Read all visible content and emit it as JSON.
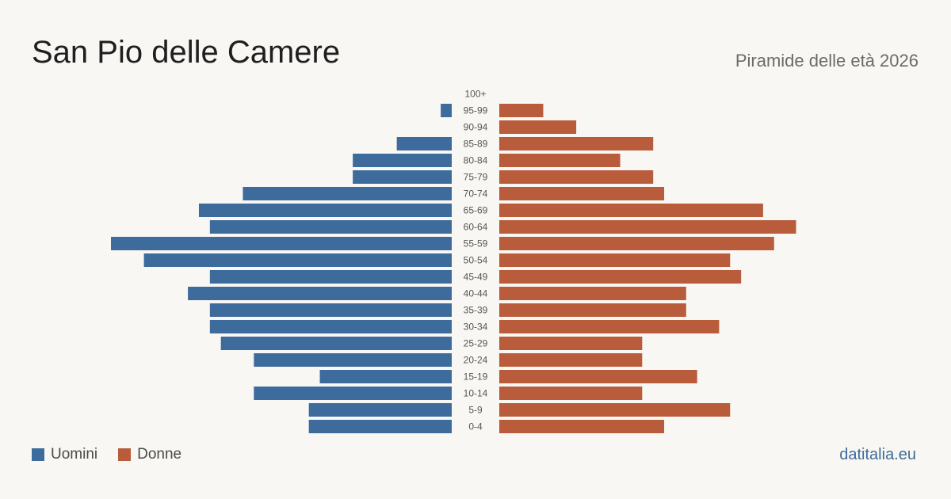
{
  "header": {
    "title": "San Pio delle Camere",
    "subtitle": "Piramide delle età 2026"
  },
  "legend": {
    "men": "Uomini",
    "women": "Donne"
  },
  "footer": {
    "source": "datitalia.eu"
  },
  "colors": {
    "men": "#3d6b9c",
    "women": "#b85c3c",
    "background": "#f9f7f3"
  },
  "chart_data": {
    "type": "bar",
    "orientation": "horizontal-pyramid",
    "categories": [
      "100+",
      "95-99",
      "90-94",
      "85-89",
      "80-84",
      "75-79",
      "70-74",
      "65-69",
      "60-64",
      "55-59",
      "50-54",
      "45-49",
      "40-44",
      "35-39",
      "30-34",
      "25-29",
      "20-24",
      "15-19",
      "10-14",
      "5-9",
      "0-4"
    ],
    "series": [
      {
        "name": "Uomini",
        "values": [
          0,
          1,
          0,
          5,
          9,
          9,
          19,
          23,
          22,
          31,
          28,
          22,
          24,
          22,
          22,
          21,
          18,
          12,
          18,
          13,
          13
        ]
      },
      {
        "name": "Donne",
        "values": [
          0,
          4,
          7,
          14,
          11,
          14,
          15,
          24,
          27,
          25,
          21,
          22,
          17,
          17,
          20,
          13,
          13,
          18,
          13,
          21,
          15
        ]
      }
    ],
    "title": "San Pio delle Camere",
    "subtitle": "Piramide delle età 2026",
    "xlabel": "",
    "ylabel": "",
    "xlim": [
      0,
      31
    ],
    "grid": false,
    "legend_position": "bottom-left"
  }
}
